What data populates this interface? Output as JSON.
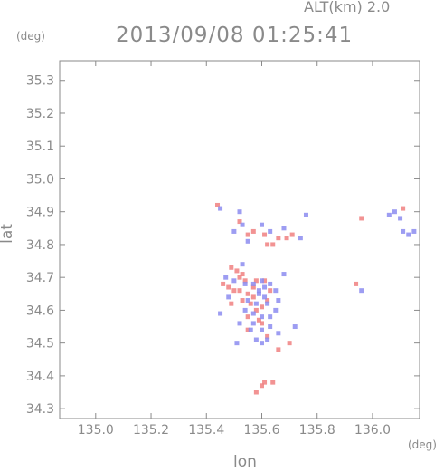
{
  "header": {
    "altitude": "ALT(km) 2.0",
    "timestamp": "2013/09/08 01:25:41"
  },
  "chart_data": {
    "type": "scatter",
    "title": "2013/09/08 01:25:41",
    "subtitle": "ALT(km) 2.0",
    "xlabel": "lon",
    "ylabel": "lat",
    "x_unit": "(deg)",
    "y_unit": "(deg)",
    "xlim": [
      134.87,
      136.17
    ],
    "ylim": [
      34.27,
      35.36
    ],
    "x_ticks": [
      "135.0",
      "135.2",
      "135.4",
      "135.6",
      "135.8",
      "136.0"
    ],
    "y_ticks": [
      "34.3",
      "34.4",
      "34.5",
      "34.6",
      "34.7",
      "34.8",
      "34.9",
      "35.0",
      "35.1",
      "35.2",
      "35.3"
    ],
    "grid": false,
    "colors": {
      "positive": "#f08080",
      "negative": "#8c8cf0",
      "axis": "#8a8a8a"
    },
    "series": [
      {
        "sign": "positive",
        "points": [
          [
            135.44,
            34.92
          ],
          [
            135.52,
            34.87
          ],
          [
            135.55,
            34.83
          ],
          [
            135.57,
            34.84
          ],
          [
            135.61,
            34.83
          ],
          [
            135.62,
            34.8
          ],
          [
            135.64,
            34.8
          ],
          [
            135.66,
            34.82
          ],
          [
            135.69,
            34.82
          ],
          [
            135.71,
            34.83
          ],
          [
            135.96,
            34.88
          ],
          [
            136.11,
            34.91
          ],
          [
            135.49,
            34.73
          ],
          [
            135.51,
            34.72
          ],
          [
            135.53,
            34.71
          ],
          [
            135.52,
            34.7
          ],
          [
            135.48,
            34.67
          ],
          [
            135.5,
            34.66
          ],
          [
            135.52,
            34.66
          ],
          [
            135.55,
            34.65
          ],
          [
            135.57,
            34.64
          ],
          [
            135.56,
            34.62
          ],
          [
            135.58,
            34.6
          ],
          [
            135.55,
            34.58
          ],
          [
            135.59,
            34.57
          ],
          [
            135.6,
            34.56
          ],
          [
            135.62,
            34.63
          ],
          [
            135.61,
            34.69
          ],
          [
            135.63,
            34.66
          ],
          [
            135.58,
            34.69
          ],
          [
            135.53,
            34.63
          ],
          [
            135.49,
            34.62
          ],
          [
            135.55,
            34.54
          ],
          [
            135.62,
            34.52
          ],
          [
            135.66,
            34.48
          ],
          [
            135.7,
            34.5
          ],
          [
            135.94,
            34.68
          ],
          [
            135.61,
            34.38
          ],
          [
            135.6,
            34.37
          ],
          [
            135.64,
            34.38
          ],
          [
            135.58,
            34.35
          ],
          [
            135.46,
            34.68
          ],
          [
            135.54,
            34.69
          ],
          [
            135.57,
            34.67
          ],
          [
            135.6,
            34.61
          ]
        ]
      },
      {
        "sign": "negative",
        "points": [
          [
            135.52,
            34.9
          ],
          [
            135.53,
            34.86
          ],
          [
            135.55,
            34.81
          ],
          [
            135.6,
            34.86
          ],
          [
            135.63,
            34.84
          ],
          [
            135.68,
            34.85
          ],
          [
            135.74,
            34.82
          ],
          [
            135.76,
            34.89
          ],
          [
            136.06,
            34.89
          ],
          [
            136.08,
            34.9
          ],
          [
            136.1,
            34.88
          ],
          [
            136.11,
            34.84
          ],
          [
            136.13,
            34.83
          ],
          [
            136.15,
            34.84
          ],
          [
            135.47,
            34.7
          ],
          [
            135.5,
            34.69
          ],
          [
            135.54,
            34.68
          ],
          [
            135.57,
            34.68
          ],
          [
            135.6,
            34.69
          ],
          [
            135.61,
            34.67
          ],
          [
            135.63,
            34.68
          ],
          [
            135.59,
            34.65
          ],
          [
            135.61,
            34.64
          ],
          [
            135.54,
            34.6
          ],
          [
            135.57,
            34.59
          ],
          [
            135.6,
            34.58
          ],
          [
            135.63,
            34.58
          ],
          [
            135.65,
            34.6
          ],
          [
            135.66,
            34.63
          ],
          [
            135.52,
            34.56
          ],
          [
            135.56,
            34.54
          ],
          [
            135.6,
            34.54
          ],
          [
            135.63,
            34.55
          ],
          [
            135.58,
            34.51
          ],
          [
            135.6,
            34.5
          ],
          [
            135.62,
            34.51
          ],
          [
            135.51,
            34.5
          ],
          [
            135.45,
            34.59
          ],
          [
            135.66,
            34.53
          ],
          [
            135.72,
            34.55
          ],
          [
            135.48,
            34.64
          ],
          [
            135.58,
            34.62
          ],
          [
            135.62,
            34.62
          ],
          [
            135.59,
            34.66
          ],
          [
            135.65,
            34.66
          ],
          [
            135.53,
            34.74
          ],
          [
            135.96,
            34.66
          ],
          [
            135.68,
            34.71
          ],
          [
            135.57,
            34.56
          ],
          [
            135.55,
            34.63
          ],
          [
            135.5,
            34.84
          ],
          [
            135.45,
            34.91
          ]
        ]
      }
    ]
  }
}
